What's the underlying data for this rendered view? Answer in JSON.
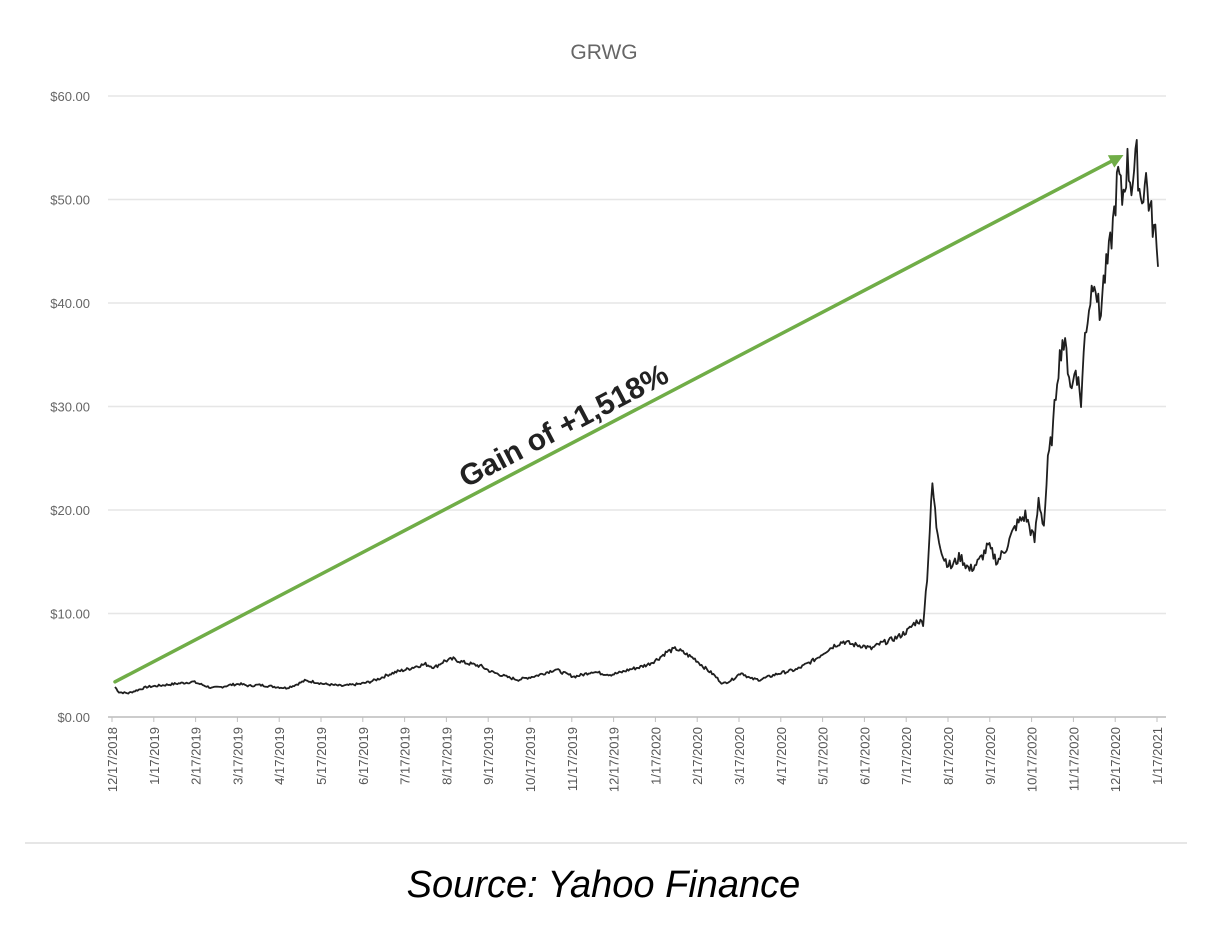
{
  "colors": {
    "price_line": "#1f1f1f",
    "gain_arrow": "#70ad47",
    "gridline": "#e6e6e6",
    "axis": "#bfbfbf",
    "title": "#666666"
  },
  "annotation": {
    "text": "Gain of +1,518%"
  },
  "caption": {
    "text": "Source: Yahoo Finance"
  },
  "chart_data": {
    "type": "line",
    "title": "GRWG",
    "xlabel": "",
    "ylabel": "",
    "ylim": [
      0,
      60
    ],
    "y_ticks": [
      "$0.00",
      "$10.00",
      "$20.00",
      "$30.00",
      "$40.00",
      "$50.00",
      "$60.00"
    ],
    "y_tick_values": [
      0,
      10,
      20,
      30,
      40,
      50,
      60
    ],
    "x_tick_labels": [
      "12/17/2018",
      "1/17/2019",
      "2/17/2019",
      "3/17/2019",
      "4/17/2019",
      "5/17/2019",
      "6/17/2019",
      "7/17/2019",
      "8/17/2019",
      "9/17/2019",
      "10/17/2019",
      "11/17/2019",
      "12/17/2019",
      "1/17/2020",
      "2/17/2020",
      "3/17/2020",
      "4/17/2020",
      "5/17/2020",
      "6/17/2020",
      "7/17/2020",
      "8/17/2020",
      "9/17/2020",
      "10/17/2020",
      "11/17/2020",
      "12/17/2020",
      "1/17/2021"
    ],
    "xlim": [
      "2018-12-17",
      "2021-02-10"
    ],
    "grid": true,
    "legend": "none",
    "series": [
      {
        "x": [
          "2018-12-17",
          "2018-12-20",
          "2018-12-27",
          "2019-01-03",
          "2019-01-10",
          "2019-01-17",
          "2019-01-24",
          "2019-01-31",
          "2019-02-07",
          "2019-02-14",
          "2019-02-21",
          "2019-02-28",
          "2019-03-07",
          "2019-03-14",
          "2019-03-21",
          "2019-03-28",
          "2019-04-04",
          "2019-04-11",
          "2019-04-18",
          "2019-04-25",
          "2019-05-02",
          "2019-05-09",
          "2019-05-16",
          "2019-05-23",
          "2019-05-30",
          "2019-06-06",
          "2019-06-13",
          "2019-06-20",
          "2019-06-27",
          "2019-07-04",
          "2019-07-11",
          "2019-07-18",
          "2019-07-25",
          "2019-08-01",
          "2019-08-08",
          "2019-08-15",
          "2019-08-22",
          "2019-08-29",
          "2019-09-05",
          "2019-09-12",
          "2019-09-19",
          "2019-09-26",
          "2019-10-03",
          "2019-10-10",
          "2019-10-17",
          "2019-10-24",
          "2019-10-31",
          "2019-11-07",
          "2019-11-14",
          "2019-11-21",
          "2019-11-28",
          "2019-12-05",
          "2019-12-12",
          "2019-12-19",
          "2019-12-26",
          "2020-01-02",
          "2020-01-09",
          "2020-01-16",
          "2020-01-23",
          "2020-01-30",
          "2020-02-06",
          "2020-02-13",
          "2020-02-20",
          "2020-02-27",
          "2020-03-05",
          "2020-03-12",
          "2020-03-19",
          "2020-03-26",
          "2020-04-02",
          "2020-04-09",
          "2020-04-16",
          "2020-04-23",
          "2020-04-30",
          "2020-05-07",
          "2020-05-14",
          "2020-05-21",
          "2020-05-28",
          "2020-06-04",
          "2020-06-11",
          "2020-06-18",
          "2020-06-25",
          "2020-07-02",
          "2020-07-09",
          "2020-07-16",
          "2020-07-23",
          "2020-07-30",
          "2020-08-06",
          "2020-08-10",
          "2020-08-13",
          "2020-08-17",
          "2020-08-20",
          "2020-08-24",
          "2020-08-27",
          "2020-09-01",
          "2020-09-07",
          "2020-09-14",
          "2020-09-21",
          "2020-09-28",
          "2020-10-05",
          "2020-10-12",
          "2020-10-19",
          "2020-10-26",
          "2020-11-02",
          "2020-11-09",
          "2020-11-12",
          "2020-11-16",
          "2020-11-19",
          "2020-11-23",
          "2020-11-26",
          "2020-11-30",
          "2020-12-03",
          "2020-12-07",
          "2020-12-10",
          "2020-12-14",
          "2020-12-17",
          "2020-12-21",
          "2020-12-24",
          "2020-12-28",
          "2020-12-31",
          "2021-01-04",
          "2021-01-07",
          "2021-01-11",
          "2021-01-14",
          "2021-01-18",
          "2021-01-21",
          "2021-01-25",
          "2021-01-28",
          "2021-02-01",
          "2021-02-04",
          "2021-02-08",
          "2021-02-10"
        ],
        "values": [
          2.9,
          2.4,
          2.3,
          2.6,
          2.9,
          3.0,
          3.1,
          3.2,
          3.3,
          3.4,
          3.1,
          2.8,
          2.9,
          3.1,
          3.2,
          3.0,
          3.1,
          3.0,
          2.9,
          2.8,
          3.1,
          3.5,
          3.4,
          3.2,
          3.1,
          3.0,
          3.1,
          3.2,
          3.4,
          3.7,
          4.1,
          4.4,
          4.6,
          4.9,
          5.1,
          4.8,
          5.4,
          5.6,
          5.3,
          5.1,
          4.9,
          4.4,
          4.1,
          3.8,
          3.6,
          3.8,
          4.0,
          4.3,
          4.6,
          4.2,
          3.9,
          4.1,
          4.4,
          4.2,
          4.1,
          4.3,
          4.6,
          4.8,
          5.1,
          5.6,
          6.3,
          6.6,
          6.1,
          5.6,
          4.8,
          4.1,
          3.2,
          3.6,
          4.3,
          3.7,
          3.6,
          3.9,
          4.2,
          4.4,
          4.6,
          5.1,
          5.6,
          6.3,
          6.9,
          7.3,
          7.0,
          6.9,
          6.6,
          7.1,
          7.4,
          7.8,
          8.4,
          9.0,
          9.3,
          9.1,
          13.5,
          22.5,
          18.5,
          15.5,
          14.5,
          15.5,
          14.2,
          15.0,
          16.5,
          15.0,
          16.5,
          18.5,
          19.5,
          17.0,
          21.0,
          18.5,
          24.5,
          28.0,
          33.0,
          36.5,
          35.0,
          31.5,
          34.0,
          30.5,
          37.0,
          40.5,
          43.0,
          38.5,
          42.0,
          44.5,
          47.5,
          52.5,
          50.0,
          53.5,
          51.5,
          54.0,
          50.0,
          52.0,
          49.0,
          46.5,
          43.5
        ]
      }
    ],
    "trend_line": {
      "x": [
        "2018-12-17",
        "2021-01-15"
      ],
      "values": [
        3.4,
        54.3
      ]
    }
  }
}
